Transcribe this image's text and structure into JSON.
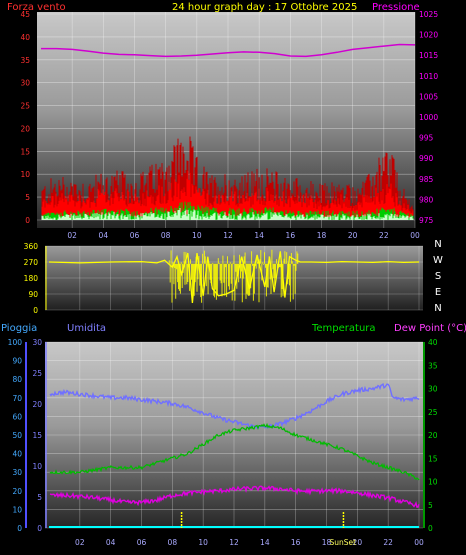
{
  "header": {
    "title": "24 hour graph day : 17 Ottobre 2025",
    "wind_label": "Forza vento",
    "pressure_label": "Pressione"
  },
  "labels": {
    "rain": "Pioggia",
    "humidity": "Umidita",
    "temperature": "Temperatura",
    "dewpoint": "Dew Point (°C)",
    "sunrise_sunset": "SunSet"
  },
  "colors": {
    "background": "#000000",
    "wind": "#ff0000",
    "gust": "#ff0000",
    "wind_avg": "#00cc00",
    "wind_light": "#c8ffc8",
    "pressure": "#d000d0",
    "direction": "#ffff00",
    "humidity": "#7070ff",
    "temperature": "#00bb00",
    "dewpoint": "#e000e0",
    "rain": "#00ffff",
    "rain_axis": "#5050ff",
    "hum_axis": "#8080ff",
    "temp_axis": "#00cc00",
    "sun_marker": "#ffff00"
  },
  "chart_data": [
    {
      "type": "line",
      "title": "24 hour graph day : 17 Ottobre 2025",
      "x_ticks": [
        "02",
        "04",
        "06",
        "08",
        "10",
        "12",
        "14",
        "16",
        "18",
        "20",
        "22",
        "00"
      ],
      "y_left_label": "Forza vento",
      "y_left_ticks": [
        "0",
        "5",
        "10",
        "15",
        "20",
        "25",
        "30",
        "35",
        "40",
        "45"
      ],
      "ylim_left": [
        0,
        45
      ],
      "y_right_label": "Pressione",
      "y_right_ticks": [
        "975",
        "980",
        "985",
        "990",
        "995",
        "1000",
        "1005",
        "1010",
        "1015",
        "1020",
        "1025"
      ],
      "ylim_right": [
        975,
        1025
      ],
      "series": [
        {
          "name": "Pressione",
          "axis": "right",
          "x": [
            0,
            1,
            2,
            3,
            4,
            5,
            6,
            7,
            8,
            9,
            10,
            11,
            12,
            13,
            14,
            15,
            16,
            17,
            18,
            19,
            20,
            21,
            22,
            23,
            24
          ],
          "values": [
            1016.6,
            1016.6,
            1016.4,
            1016.0,
            1015.5,
            1015.2,
            1015.1,
            1014.9,
            1014.7,
            1014.8,
            1015.0,
            1015.3,
            1015.6,
            1015.8,
            1015.7,
            1015.4,
            1014.8,
            1014.7,
            1015.1,
            1015.7,
            1016.4,
            1016.8,
            1017.2,
            1017.6,
            1017.5
          ]
        }
      ],
      "wind_envelope": {
        "hours": [
          0,
          1,
          2,
          3,
          4,
          5,
          6,
          7,
          8,
          8.5,
          9,
          9.5,
          10,
          11,
          12,
          13,
          14,
          15,
          16,
          17,
          18,
          19,
          20,
          21,
          22,
          22.5,
          23,
          24
        ],
        "gust_max": [
          8,
          10,
          10,
          9,
          11,
          11,
          10,
          12,
          15,
          18,
          20,
          19,
          14,
          10,
          11,
          10,
          12,
          11,
          10,
          9,
          8,
          9,
          8,
          10,
          16,
          17,
          8,
          4
        ],
        "wind_mean": [
          4,
          5,
          5,
          5,
          6,
          6,
          5,
          6,
          7,
          8,
          9,
          9,
          7,
          5,
          6,
          5,
          6,
          6,
          5,
          5,
          4,
          5,
          4,
          5,
          7,
          7,
          4,
          2
        ],
        "wind_avg": [
          1,
          1.5,
          1.5,
          1.5,
          2,
          2,
          1.5,
          2,
          2,
          2.5,
          3,
          3,
          2.5,
          2,
          2,
          2,
          2,
          2,
          1.5,
          1.5,
          1.5,
          1.5,
          1.5,
          1.5,
          2,
          2,
          1.5,
          1
        ]
      }
    },
    {
      "type": "line",
      "y_ticks": [
        "0",
        "90",
        "180",
        "270",
        "360"
      ],
      "ylim": [
        0,
        360
      ],
      "compass": [
        "N",
        "W",
        "S",
        "E",
        "N"
      ],
      "series": [
        {
          "name": "direction",
          "x": [
            0,
            2,
            4,
            6,
            7,
            7.5,
            8,
            8.3,
            8.6,
            9,
            9.3,
            9.6,
            10,
            10.3,
            10.6,
            11,
            11.5,
            12,
            12.5,
            13,
            13.5,
            14,
            14.3,
            14.6,
            15,
            15.3,
            15.6,
            16,
            16.3,
            17,
            18,
            19,
            20,
            21,
            22,
            23,
            24
          ],
          "values": [
            270,
            265,
            270,
            272,
            265,
            280,
            240,
            300,
            200,
            320,
            40,
            320,
            80,
            300,
            120,
            80,
            90,
            110,
            300,
            120,
            310,
            130,
            300,
            100,
            330,
            70,
            300,
            280,
            270,
            270,
            268,
            272,
            270,
            268,
            272,
            268,
            270
          ]
        }
      ]
    },
    {
      "type": "line",
      "x_ticks": [
        "02",
        "04",
        "06",
        "08",
        "10",
        "12",
        "14",
        "16",
        "18",
        "20",
        "22",
        "00"
      ],
      "y_rain_label": "Pioggia",
      "y_rain_ticks": [
        "0",
        "10",
        "20",
        "30",
        "40",
        "50",
        "60",
        "70",
        "80",
        "90",
        "100"
      ],
      "ylim_rain": [
        0,
        100
      ],
      "y_hum_label": "Umidita",
      "y_hum_ticks": [
        "0",
        "5",
        "10",
        "15",
        "20",
        "25",
        "30"
      ],
      "ylim_hum": [
        0,
        30
      ],
      "y_temp_label": "Temperatura",
      "y_temp_ticks": [
        "0",
        "5",
        "10",
        "15",
        "20",
        "25",
        "30",
        "35",
        "40"
      ],
      "ylim_temp": [
        0,
        40
      ],
      "series": [
        {
          "name": "Umidita",
          "axis": "rain",
          "x": [
            0,
            1,
            2,
            3,
            4,
            5,
            6,
            7,
            8,
            9,
            10,
            11,
            12,
            13,
            14,
            15,
            16,
            17,
            18,
            19,
            20,
            21,
            22,
            22.3,
            23,
            24
          ],
          "values": [
            72,
            73,
            72,
            71,
            70,
            70,
            69,
            68,
            67,
            65,
            62,
            59,
            57,
            55,
            54,
            56,
            59,
            63,
            68,
            72,
            74,
            75,
            77,
            70,
            69,
            70
          ]
        },
        {
          "name": "Temperatura",
          "axis": "temp",
          "x": [
            0,
            1,
            2,
            3,
            4,
            5,
            6,
            7,
            8,
            9,
            10,
            11,
            12,
            13,
            14,
            15,
            16,
            17,
            18,
            19,
            20,
            21,
            22,
            23,
            24
          ],
          "values": [
            12,
            12,
            12,
            12.5,
            13,
            13,
            13,
            14,
            15,
            16,
            18,
            20,
            21,
            21.5,
            22,
            21.5,
            20,
            19,
            18,
            17,
            15.5,
            14,
            13,
            12,
            10.5
          ]
        },
        {
          "name": "Dew Point (°C)",
          "axis": "temp",
          "x": [
            0,
            1,
            2,
            3,
            4,
            5,
            6,
            7,
            8,
            9,
            10,
            11,
            12,
            13,
            14,
            15,
            16,
            17,
            18,
            19,
            20,
            21,
            22,
            23,
            24
          ],
          "values": [
            7,
            7,
            6.8,
            6.5,
            6,
            5.5,
            5.5,
            6,
            7,
            7.5,
            7.8,
            8,
            8.3,
            8.5,
            8.6,
            8.4,
            8,
            7.9,
            8,
            8,
            7.6,
            7,
            6.5,
            5.6,
            4.8
          ]
        },
        {
          "name": "Pioggia",
          "axis": "rain",
          "x": [
            0,
            24
          ],
          "values": [
            0,
            0
          ]
        }
      ],
      "sunrise_hour": 8.6,
      "sunset_hour": 19.1
    }
  ]
}
